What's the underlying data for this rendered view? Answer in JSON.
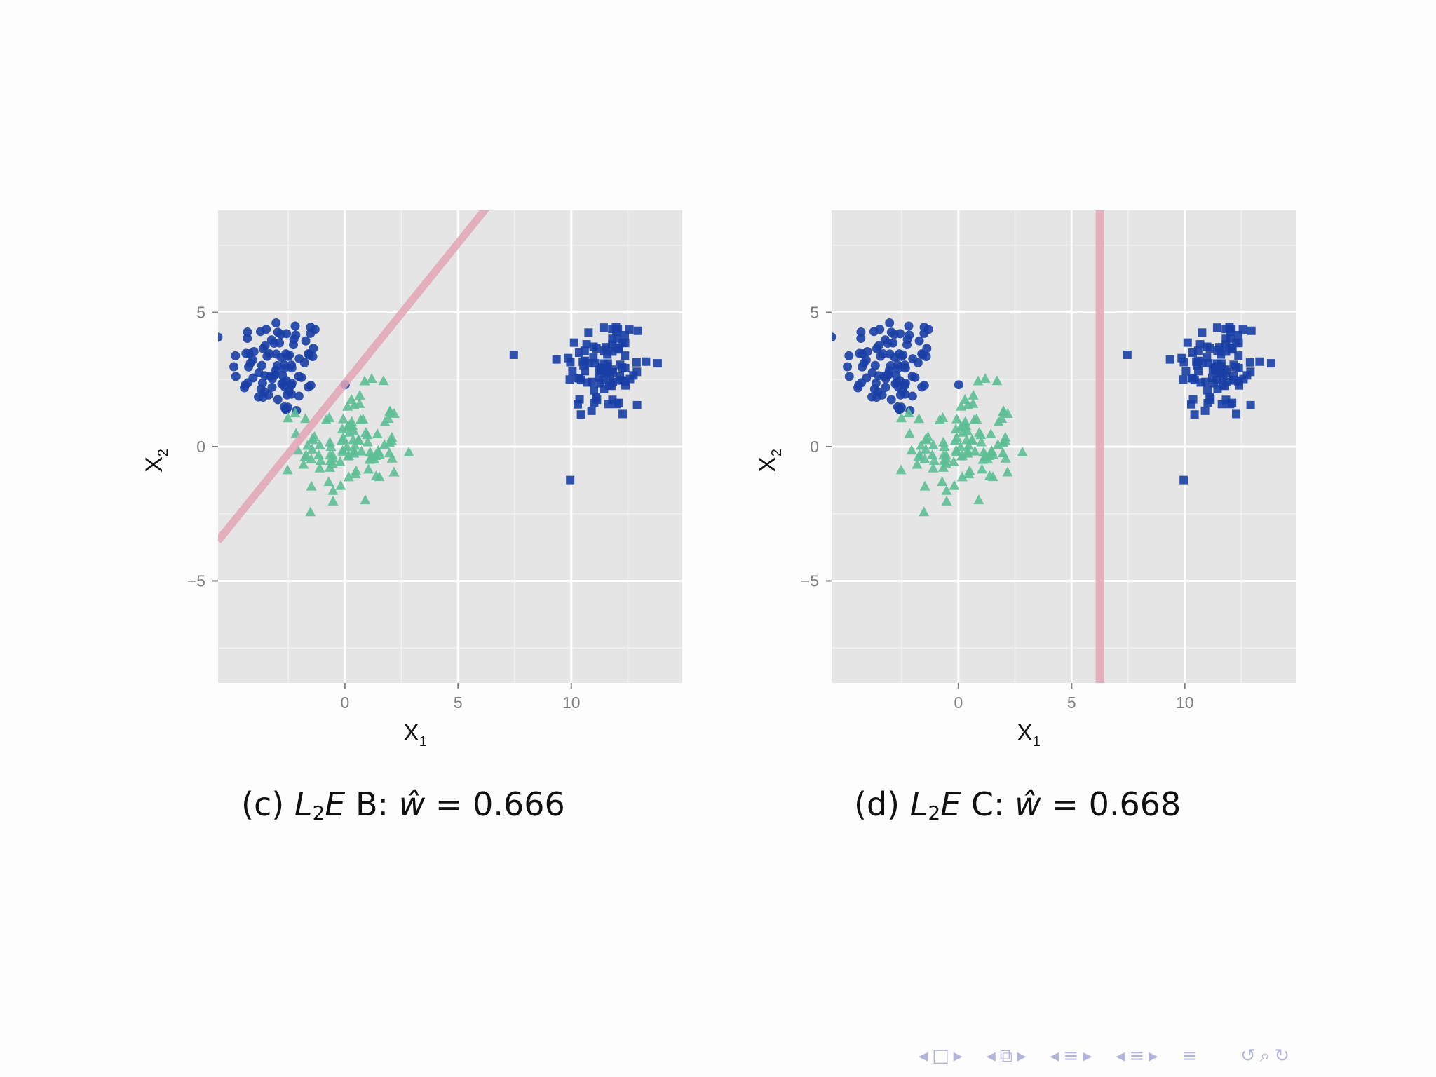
{
  "colors": {
    "panel_bg": "#e5e5e5",
    "grid_major": "#ffffff",
    "grid_minor": "#f0f0f0",
    "circles": "#1a3fa6",
    "squares": "#1a3fa6",
    "triangles": "#5dbf96",
    "boundary": "#e3a6b6",
    "nav": "#b3b3dd"
  },
  "chart_data": [
    {
      "type": "scatter",
      "panel": "c",
      "xlabel": "X",
      "xlabel_sub": "1",
      "ylabel": "X",
      "ylabel_sub": "2",
      "xlim": [
        -5.6,
        14.9
      ],
      "ylim": [
        -8.8,
        8.8
      ],
      "xticks": [
        0,
        5,
        10
      ],
      "yticks": [
        -5,
        0,
        5
      ],
      "grid": true,
      "boundary": {
        "kind": "line",
        "slope": 1.046,
        "intercept": 2.35
      },
      "caption": {
        "prefix": "(c)",
        "estimator": "L",
        "estimator_sub": "2",
        "estimator_suffix": "E",
        "label": "B:",
        "weight_symbol": "ŵ",
        "equals": "=",
        "weight": "0.666"
      },
      "clusters": [
        {
          "shape": "circle",
          "cx": -2.9,
          "cy": 3.0,
          "sx": 1.05,
          "sy": 0.95,
          "n": 90
        },
        {
          "shape": "square",
          "cx": 11.5,
          "cy": 2.95,
          "sx": 1.0,
          "sy": 1.0,
          "n": 95
        },
        {
          "shape": "triangle",
          "cx": 0.2,
          "cy": 0.0,
          "sx": 1.1,
          "sy": 1.05,
          "n": 100
        }
      ]
    },
    {
      "type": "scatter",
      "panel": "d",
      "xlabel": "X",
      "xlabel_sub": "1",
      "ylabel": "X",
      "ylabel_sub": "2",
      "xlim": [
        -5.6,
        14.9
      ],
      "ylim": [
        -8.8,
        8.8
      ],
      "xticks": [
        0,
        5,
        10
      ],
      "yticks": [
        -5,
        0,
        5
      ],
      "grid": true,
      "boundary": {
        "kind": "vline",
        "x": 6.25
      },
      "caption": {
        "prefix": "(d)",
        "estimator": "L",
        "estimator_sub": "2",
        "estimator_suffix": "E",
        "label": "C:",
        "weight_symbol": "ŵ",
        "equals": "=",
        "weight": "0.668"
      },
      "clusters": [
        {
          "shape": "circle",
          "cx": -2.9,
          "cy": 3.0,
          "sx": 1.05,
          "sy": 0.95,
          "n": 90
        },
        {
          "shape": "square",
          "cx": 11.5,
          "cy": 2.95,
          "sx": 1.0,
          "sy": 1.0,
          "n": 95
        },
        {
          "shape": "triangle",
          "cx": 0.2,
          "cy": 0.0,
          "sx": 1.1,
          "sy": 1.05,
          "n": 100
        }
      ]
    }
  ],
  "nav": {
    "first": "◂",
    "frame": "□",
    "frame_next": "▸",
    "sub_prev": "◂",
    "sub_icon": "⧉",
    "sub_next": "▸",
    "sec_prev": "◂",
    "sec_icon": "≡",
    "sec_next": "▸",
    "subsec_prev": "◂",
    "subsec_icon": "≡",
    "subsec_next": "▸",
    "toc_icon": "≡",
    "undo": "↺",
    "search": "⌕",
    "redo": "↻"
  }
}
